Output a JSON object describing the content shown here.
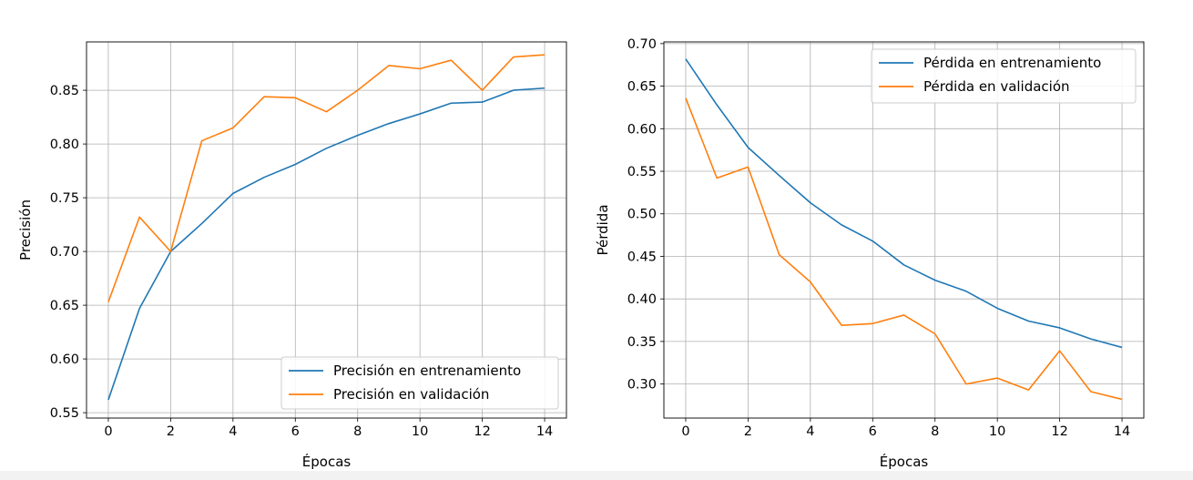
{
  "chart_data": [
    {
      "type": "line",
      "title": "",
      "xlabel": "Épocas",
      "ylabel": "Precisión",
      "xlim": [
        -0.7,
        14.7
      ],
      "ylim": [
        0.545,
        0.895
      ],
      "xticks": [
        0,
        2,
        4,
        6,
        8,
        10,
        12,
        14
      ],
      "yticks": [
        0.55,
        0.6,
        0.65,
        0.7,
        0.75,
        0.8,
        0.85
      ],
      "ytick_labels": [
        "0.55",
        "0.60",
        "0.65",
        "0.70",
        "0.75",
        "0.80",
        "0.85"
      ],
      "grid": true,
      "legend_position": "lower-right",
      "x": [
        0,
        1,
        2,
        3,
        4,
        5,
        6,
        7,
        8,
        9,
        10,
        11,
        12,
        13,
        14
      ],
      "series": [
        {
          "name": "Precisión en entrenamiento",
          "color": "#1f77b4",
          "values": [
            0.562,
            0.647,
            0.7,
            0.726,
            0.754,
            0.769,
            0.781,
            0.796,
            0.808,
            0.819,
            0.828,
            0.838,
            0.839,
            0.85,
            0.852
          ]
        },
        {
          "name": "Precisión en validación",
          "color": "#ff7f0e",
          "values": [
            0.653,
            0.732,
            0.7,
            0.803,
            0.815,
            0.844,
            0.843,
            0.83,
            0.85,
            0.873,
            0.87,
            0.878,
            0.85,
            0.881,
            0.883
          ]
        }
      ]
    },
    {
      "type": "line",
      "title": "",
      "xlabel": "Épocas",
      "ylabel": "Pérdida",
      "xlim": [
        -0.7,
        14.7
      ],
      "ylim": [
        0.26,
        0.702
      ],
      "xticks": [
        0,
        2,
        4,
        6,
        8,
        10,
        12,
        14
      ],
      "yticks": [
        0.3,
        0.35,
        0.4,
        0.45,
        0.5,
        0.55,
        0.6,
        0.65,
        0.7
      ],
      "ytick_labels": [
        "0.30",
        "0.35",
        "0.40",
        "0.45",
        "0.50",
        "0.55",
        "0.60",
        "0.65",
        "0.70"
      ],
      "grid": true,
      "legend_position": "upper-right",
      "x": [
        0,
        1,
        2,
        3,
        4,
        5,
        6,
        7,
        8,
        9,
        10,
        11,
        12,
        13,
        14
      ],
      "series": [
        {
          "name": "Pérdida en entrenamiento",
          "color": "#1f77b4",
          "values": [
            0.682,
            0.628,
            0.578,
            0.545,
            0.513,
            0.487,
            0.468,
            0.44,
            0.422,
            0.409,
            0.389,
            0.374,
            0.366,
            0.353,
            0.343
          ]
        },
        {
          "name": "Pérdida en validación",
          "color": "#ff7f0e",
          "values": [
            0.636,
            0.542,
            0.555,
            0.452,
            0.42,
            0.369,
            0.371,
            0.381,
            0.359,
            0.3,
            0.307,
            0.293,
            0.339,
            0.291,
            0.282
          ]
        }
      ]
    }
  ]
}
